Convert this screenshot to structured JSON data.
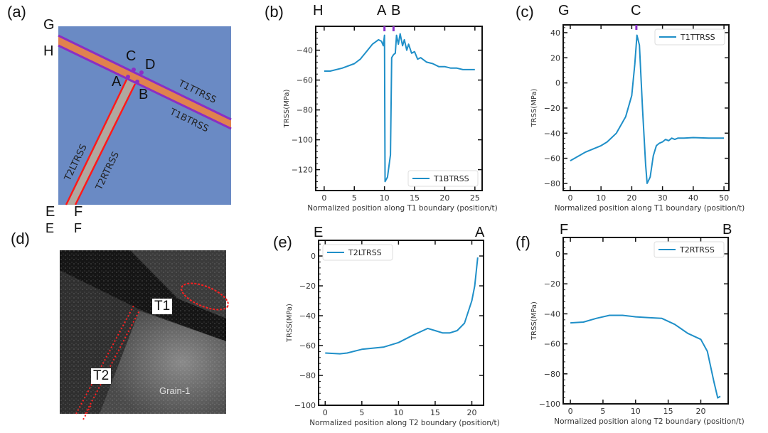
{
  "panels": {
    "a": {
      "label": "(a)",
      "points": {
        "G": "G",
        "H": "H",
        "C": "C",
        "D": "D",
        "A": "A",
        "B": "B",
        "E": "E",
        "F": "F"
      },
      "boundaries": {
        "t1t": "T1TTRSS",
        "t1b": "T1BTRSS",
        "t2l": "T2LTRSS",
        "t2r": "T2RTRSS"
      }
    },
    "b": {
      "label": "(b)",
      "top_marks": [
        "H",
        "A",
        "B"
      ]
    },
    "c": {
      "label": "(c)",
      "top_marks": [
        "G",
        "C"
      ]
    },
    "d": {
      "label": "(d)",
      "top_marks": [
        "E",
        "F"
      ],
      "annotations": {
        "t1": "T1",
        "t2": "T2",
        "grain": "Grain-1"
      }
    },
    "e": {
      "label": "(e)",
      "top_marks": [
        "E",
        "A"
      ]
    },
    "f": {
      "label": "(f)",
      "top_marks": [
        "F",
        "B"
      ]
    }
  },
  "colors": {
    "line": "#1f8fc8",
    "marker": "#8b2fc9",
    "t1_band": "#e0824e",
    "t1_edge": "#8a2fc4",
    "t2_edge": "#ff1a1a",
    "t2_band": "#b0a8a0",
    "bg_blue": "#6a8ac4"
  },
  "chart_data": [
    {
      "id": "b",
      "type": "line",
      "title": "",
      "xlabel": "Normalized position along T1 boundary (position/t)",
      "ylabel": "TRSS(MPa)",
      "xlim": [
        -1.4,
        26.2
      ],
      "ylim": [
        -134,
        -24
      ],
      "xticks": [
        0,
        5,
        10,
        15,
        20,
        25
      ],
      "yticks": [
        -120,
        -100,
        -80,
        -60,
        -40
      ],
      "legend": {
        "position": "bottom-right"
      },
      "markers_x": [
        10,
        11.5
      ],
      "series": [
        {
          "name": "T1BTRSS",
          "x": [
            0,
            1,
            3,
            5,
            6,
            7,
            8,
            9,
            9.5,
            9.8,
            10,
            10.1,
            10.5,
            11,
            11.2,
            11.5,
            11.8,
            12,
            12.3,
            12.6,
            13,
            13.3,
            13.7,
            14,
            14.5,
            15,
            15.5,
            16,
            17,
            18,
            19,
            20,
            21,
            22,
            23,
            24,
            25
          ],
          "y": [
            -54,
            -54,
            -52,
            -49,
            -46,
            -41,
            -36,
            -33,
            -34,
            -37,
            -30,
            -128,
            -125,
            -110,
            -45,
            -43,
            -42,
            -30,
            -36,
            -29,
            -37,
            -33,
            -40,
            -36,
            -42,
            -41,
            -46,
            -45,
            -48,
            -49,
            -51,
            -51,
            -52,
            -52,
            -53,
            -53,
            -53
          ]
        }
      ]
    },
    {
      "id": "c",
      "type": "line",
      "title": "",
      "xlabel": "Normalized position along T1 boundary (position/t)",
      "ylabel": "TRSS(MPa)",
      "xlim": [
        -2.3,
        51.6
      ],
      "ylim": [
        -85.7,
        46.2
      ],
      "xticks": [
        0,
        10,
        20,
        30,
        40,
        50
      ],
      "yticks": [
        -80,
        -60,
        -40,
        -20,
        0,
        20,
        40
      ],
      "legend": {
        "position": "top-right"
      },
      "markers_x": [
        21.5
      ],
      "series": [
        {
          "name": "T1TTRSS",
          "x": [
            0,
            5,
            10,
            12,
            15,
            18,
            20,
            21,
            21.7,
            22.5,
            23.5,
            24.5,
            25,
            26,
            27,
            28,
            29,
            30,
            31,
            32,
            33,
            34,
            35,
            37,
            40,
            45,
            50
          ],
          "y": [
            -62,
            -55,
            -50,
            -47,
            -40,
            -27,
            -10,
            15,
            38,
            30,
            -20,
            -65,
            -80,
            -75,
            -58,
            -50,
            -48,
            -47,
            -45,
            -46,
            -44,
            -45,
            -44,
            -44,
            -43.5,
            -44,
            -44
          ]
        }
      ]
    },
    {
      "id": "e",
      "type": "line",
      "title": "",
      "xlabel": "Normalized position along T2 boundary (position/t)",
      "ylabel": "TRSS(MPa)",
      "xlim": [
        -0.9,
        21.6
      ],
      "ylim": [
        -100,
        10.5
      ],
      "xticks": [
        0,
        5,
        10,
        15,
        20
      ],
      "yticks": [
        -100,
        -80,
        -60,
        -40,
        -20,
        0
      ],
      "legend": {
        "position": "top-left"
      },
      "markers_x": [],
      "series": [
        {
          "name": "T2LTRSS",
          "x": [
            0,
            2,
            3,
            5,
            8,
            10,
            12,
            14,
            15,
            16,
            17,
            18,
            19,
            20,
            20.4,
            20.8
          ],
          "y": [
            -65,
            -65.5,
            -65,
            -62.5,
            -61,
            -58,
            -53,
            -48.5,
            -50,
            -51.5,
            -51.5,
            -50,
            -45,
            -30,
            -20,
            -1
          ]
        }
      ]
    },
    {
      "id": "f",
      "type": "line",
      "title": "",
      "xlabel": "Normalized position along T2 boundary (position/t)",
      "ylabel": "TRSS(MPa)",
      "xlim": [
        -1.1,
        24.2
      ],
      "ylim": [
        -100,
        10.9
      ],
      "xticks": [
        0,
        5,
        10,
        15,
        20
      ],
      "yticks": [
        -100,
        -80,
        -60,
        -40,
        -20,
        0
      ],
      "legend": {
        "position": "top-right"
      },
      "markers_x": [],
      "series": [
        {
          "name": "T2RTRSS",
          "x": [
            0,
            2,
            4,
            6,
            8,
            10,
            12,
            14,
            16,
            17,
            18,
            20,
            21,
            22,
            22.6,
            23
          ],
          "y": [
            -46,
            -45.5,
            -43,
            -41,
            -41,
            -42,
            -42.5,
            -43,
            -47,
            -50,
            -53,
            -57,
            -65,
            -85,
            -96,
            -95
          ]
        }
      ]
    }
  ]
}
